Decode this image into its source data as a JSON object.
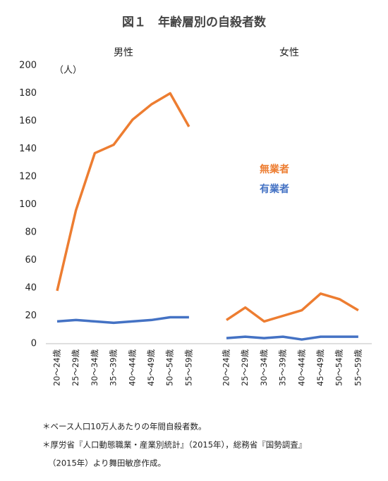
{
  "chart_data": {
    "type": "line",
    "title": "図１　年齢層別の自殺者数",
    "y_unit": "（人）",
    "ylim": [
      0,
      200
    ],
    "yticks": [
      0,
      20,
      40,
      60,
      80,
      100,
      120,
      140,
      160,
      180,
      200
    ],
    "grid": false,
    "panels": [
      {
        "name": "男性",
        "categories": [
          "20～24歳",
          "25～29歳",
          "30～34歳",
          "35～39歳",
          "40～44歳",
          "45～49歳",
          "50～54歳",
          "55～59歳"
        ],
        "series": [
          {
            "name": "無業者",
            "color": "#ed7d31",
            "values": [
              38,
              96,
              137,
              143,
              161,
              172,
              180,
              156
            ]
          },
          {
            "name": "有業者",
            "color": "#4472c4",
            "values": [
              16,
              17,
              16,
              15,
              16,
              17,
              19,
              19
            ]
          }
        ]
      },
      {
        "name": "女性",
        "categories": [
          "20～24歳",
          "25～29歳",
          "30～34歳",
          "35～39歳",
          "40～44歳",
          "45～49歳",
          "50～54歳",
          "55～59歳"
        ],
        "series": [
          {
            "name": "無業者",
            "color": "#ed7d31",
            "values": [
              17,
              26,
              16,
              20,
              24,
              36,
              32,
              24
            ]
          },
          {
            "name": "有業者",
            "color": "#4472c4",
            "values": [
              4,
              5,
              4,
              5,
              3,
              5,
              5,
              5
            ]
          }
        ]
      }
    ],
    "notes": [
      "＊ベース人口10万人あたりの年間自殺者数。",
      "＊厚労省『人口動態職業・産業別統計』（2015年），総務省『国勢調査』",
      "（2015年）より舞田敏彦作成。"
    ]
  }
}
